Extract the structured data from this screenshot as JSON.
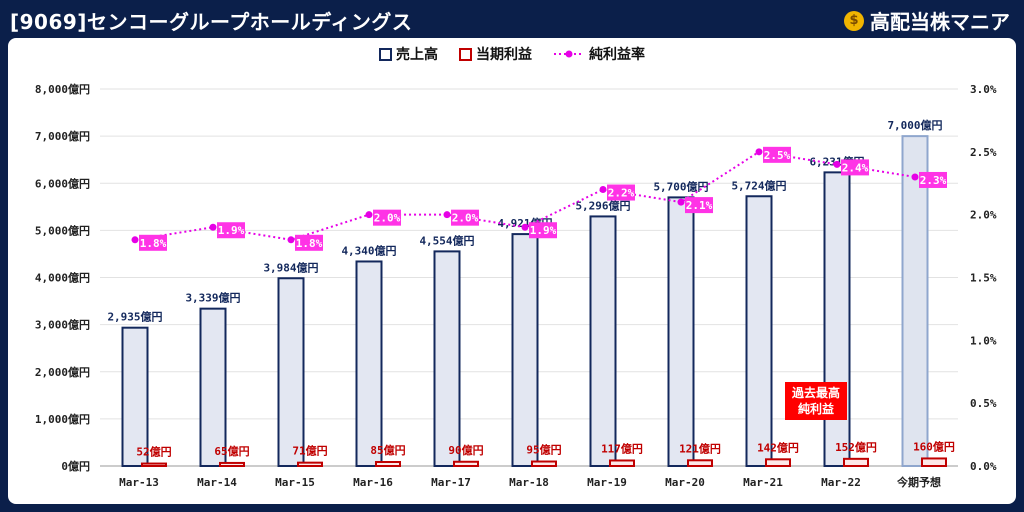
{
  "header": {
    "title": "[9069]センコーグループホールディングス"
  },
  "brand": {
    "icon": "money-bag-icon",
    "label": "高配当株マニア"
  },
  "colors": {
    "background": "#0b1f4a",
    "bar_fill": "#e3e7f2",
    "bar_stroke": "#13285c",
    "forecast_fill": "#dfe4ef",
    "forecast_stroke": "#8fa6cd",
    "profit_stroke": "#c00000",
    "rate_line": "#e600e6",
    "rate_label_bg": "#ff33e6",
    "badge_bg": "#ff0000"
  },
  "chart_data": {
    "type": "bar",
    "categories": [
      "Mar-13",
      "Mar-14",
      "Mar-15",
      "Mar-16",
      "Mar-17",
      "Mar-18",
      "Mar-19",
      "Mar-20",
      "Mar-21",
      "Mar-22",
      "今期予想"
    ],
    "series": [
      {
        "name": "売上高",
        "axis": "left",
        "values": [
          2935,
          3339,
          3984,
          4340,
          4554,
          4921,
          5296,
          5700,
          5724,
          6231,
          7000
        ],
        "labels": [
          "2,935億円",
          "3,339億円",
          "3,984億円",
          "4,340億円",
          "4,554億円",
          "4,921億円",
          "5,296億円",
          "5,700億円",
          "5,724億円",
          "6,231億円",
          "7,000億円"
        ]
      },
      {
        "name": "当期利益",
        "axis": "left",
        "values": [
          52,
          65,
          71,
          85,
          90,
          95,
          117,
          121,
          142,
          152,
          160
        ],
        "labels": [
          "52億円",
          "65億円",
          "71億円",
          "85億円",
          "90億円",
          "95億円",
          "117億円",
          "121億円",
          "142億円",
          "152億円",
          "160億円"
        ]
      },
      {
        "name": "純利益率",
        "axis": "right",
        "type": "line",
        "values": [
          1.8,
          1.9,
          1.8,
          2.0,
          2.0,
          1.9,
          2.2,
          2.1,
          2.5,
          2.4,
          2.3
        ],
        "labels": [
          "1.8%",
          "1.9%",
          "1.8%",
          "2.0%",
          "2.0%",
          "1.9%",
          "2.2%",
          "2.1%",
          "2.5%",
          "2.4%",
          "2.3%"
        ]
      }
    ],
    "ylim_left": [
      0,
      8000
    ],
    "yticks_left": [
      "0億円",
      "1,000億円",
      "2,000億円",
      "3,000億円",
      "4,000億円",
      "5,000億円",
      "6,000億円",
      "7,000億円",
      "8,000億円"
    ],
    "ylim_right": [
      0,
      3.0
    ],
    "yticks_right": [
      "0.0%",
      "0.5%",
      "1.0%",
      "1.5%",
      "2.0%",
      "2.5%",
      "3.0%"
    ],
    "grid": true,
    "legend_position": "top-center",
    "annotation": {
      "lines": [
        "過去最高",
        "純利益"
      ]
    }
  }
}
